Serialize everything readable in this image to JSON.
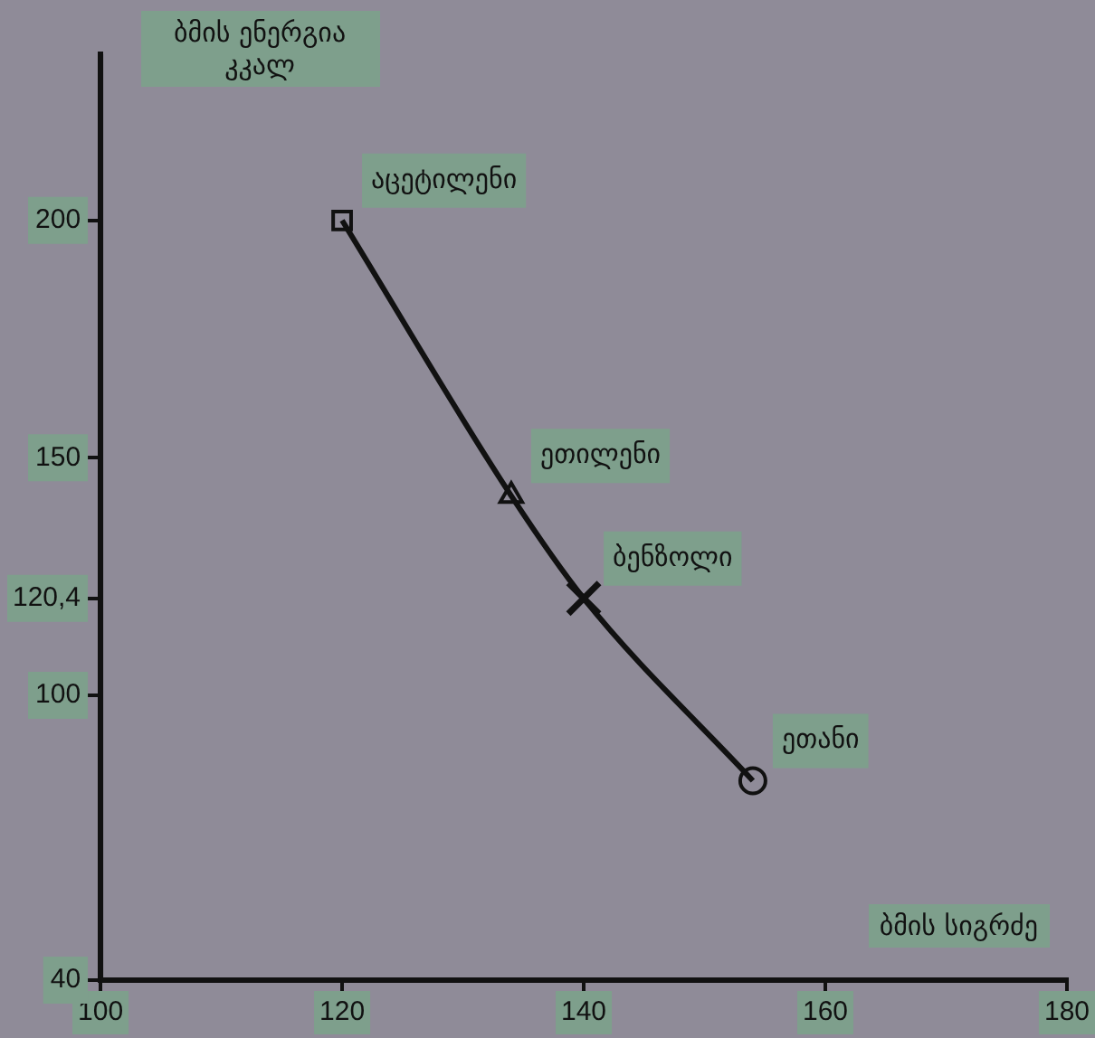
{
  "chart_data": {
    "type": "line",
    "xlabel": "ბმის სიგრძე",
    "ylabel": "ბმის ენერგია კკალ",
    "x": [
      120,
      134,
      140,
      154
    ],
    "series": [
      {
        "type": "line",
        "color": "#111111",
        "values": [
          200,
          142,
          120.4,
          82
        ],
        "marker": "none"
      },
      {
        "type": "scatter",
        "name": "აცეტილენი",
        "color": "#111111",
        "x": [
          120
        ],
        "values": [
          200
        ],
        "marker": "square"
      },
      {
        "type": "scatter",
        "name": "ეთილენი",
        "color": "#111111",
        "x": [
          134
        ],
        "values": [
          142
        ],
        "marker": "triangle"
      },
      {
        "type": "scatter",
        "name": "ბენზოლი",
        "color": "#111111",
        "x": [
          140
        ],
        "values": [
          120.4
        ],
        "marker": "cross"
      },
      {
        "type": "scatter",
        "name": "ეთანი",
        "color": "#111111",
        "x": [
          154
        ],
        "values": [
          82
        ],
        "marker": "circle"
      }
    ],
    "xlim": [
      100,
      180
    ],
    "xticks": [
      100,
      120,
      140,
      160,
      180
    ],
    "ylim": [
      40,
      235
    ],
    "yticks": [
      40,
      100,
      {
        "value": 120.4,
        "label": "120,4"
      },
      150,
      200
    ],
    "grid": false,
    "legend": false
  }
}
